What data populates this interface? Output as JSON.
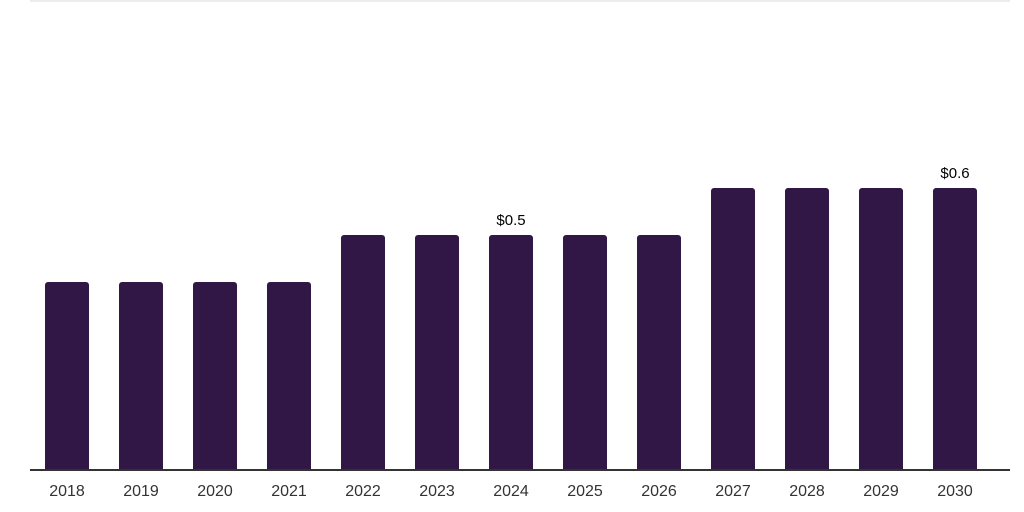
{
  "chart_data": {
    "type": "bar",
    "title": "",
    "xlabel": "",
    "ylabel": "",
    "categories": [
      "2018",
      "2019",
      "2020",
      "2021",
      "2022",
      "2023",
      "2024",
      "2025",
      "2026",
      "2027",
      "2028",
      "2029",
      "2030"
    ],
    "values": [
      0.4,
      0.4,
      0.4,
      0.4,
      0.5,
      0.5,
      0.5,
      0.5,
      0.5,
      0.6,
      0.6,
      0.6,
      0.6
    ],
    "bar_labels": {
      "2024": "$0.5",
      "2030": "$0.6"
    },
    "ylim": [
      0,
      1.0
    ],
    "grid": false,
    "legend": null,
    "bar_color": "#301745",
    "axis_color": "#333333",
    "top_rule_color": "#ededed",
    "tick_label_color": "#333333",
    "value_label_color": "#000000",
    "background_color": "#ffffff"
  }
}
